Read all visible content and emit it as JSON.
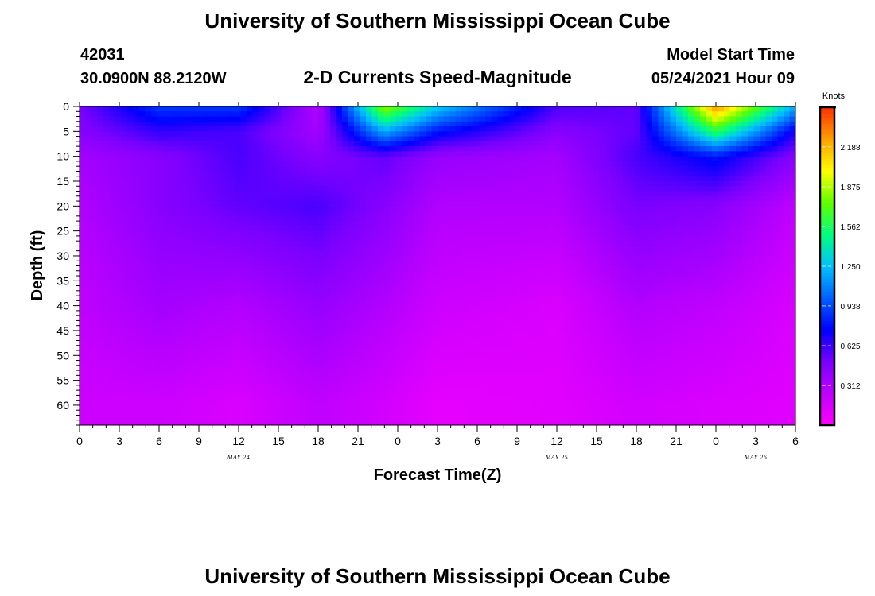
{
  "header": {
    "title": "University of Southern Mississippi Ocean Cube",
    "station_id": "42031",
    "coordinates": "30.0900N  88.2120W",
    "plot_title": "2-D Currents Speed-Magnitude",
    "model_label": "Model Start Time",
    "model_time": "05/24/2021 Hour 09"
  },
  "footer": {
    "title": "University of Southern Mississippi Ocean Cube"
  },
  "colors": {
    "scale": [
      "#ff00ff",
      "#c000ff",
      "#7a00ff",
      "#0000ff",
      "#0060ff",
      "#00c0ff",
      "#00ff80",
      "#60ff00",
      "#ffff00",
      "#ffa000",
      "#ff3000"
    ]
  },
  "chart_data": {
    "type": "heatmap",
    "xlabel": "Forecast Time(Z)",
    "ylabel": "Depth (ft)",
    "x_tick_labels": [
      "0",
      "3",
      "6",
      "9",
      "12",
      "15",
      "18",
      "21",
      "0",
      "3",
      "6",
      "9",
      "12",
      "15",
      "18",
      "21",
      "0",
      "3",
      "6"
    ],
    "date_labels": [
      {
        "text": "MAY 24",
        "at_tick": 4
      },
      {
        "text": "MAY 25",
        "at_tick": 12
      },
      {
        "text": "MAY 26",
        "at_tick": 17
      }
    ],
    "x_range_hours": [
      0,
      54
    ],
    "y_tick_labels": [
      "0",
      "5",
      "10",
      "15",
      "20",
      "25",
      "30",
      "35",
      "40",
      "45",
      "50",
      "55",
      "60"
    ],
    "y_range_ft": [
      0,
      64
    ],
    "y_inverted": true,
    "colorbar": {
      "unit": "Knots",
      "range": [
        0,
        2.5
      ],
      "tick_labels": [
        "2.188",
        "1.875",
        "1.562",
        "1.250",
        "0.938",
        "0.625",
        "0.312"
      ],
      "tick_values": [
        2.188,
        1.875,
        1.562,
        1.25,
        0.938,
        0.625,
        0.312
      ]
    },
    "surface_peaks": [
      {
        "time_h": 23,
        "max_knots": 1.85
      },
      {
        "time_h": 48,
        "max_knots": 2.3
      }
    ],
    "approx_speed_grid": {
      "times_h": [
        0,
        6,
        12,
        18,
        23,
        27,
        36,
        42,
        48,
        54
      ],
      "depths_ft": [
        0,
        5,
        10,
        20,
        40,
        60
      ],
      "knots": [
        [
          0.5,
          0.9,
          0.9,
          0.3,
          1.85,
          1.3,
          0.6,
          0.55,
          2.3,
          1.2
        ],
        [
          0.45,
          0.65,
          0.6,
          0.35,
          1.2,
          0.8,
          0.45,
          0.55,
          1.6,
          0.7
        ],
        [
          0.35,
          0.45,
          0.6,
          0.45,
          0.55,
          0.4,
          0.35,
          0.6,
          0.8,
          0.45
        ],
        [
          0.3,
          0.45,
          0.55,
          0.6,
          0.45,
          0.3,
          0.3,
          0.5,
          0.45,
          0.25
        ],
        [
          0.25,
          0.35,
          0.3,
          0.4,
          0.3,
          0.2,
          0.15,
          0.3,
          0.25,
          0.15
        ],
        [
          0.2,
          0.2,
          0.15,
          0.25,
          0.18,
          0.1,
          0.12,
          0.18,
          0.15,
          0.12
        ]
      ]
    }
  }
}
